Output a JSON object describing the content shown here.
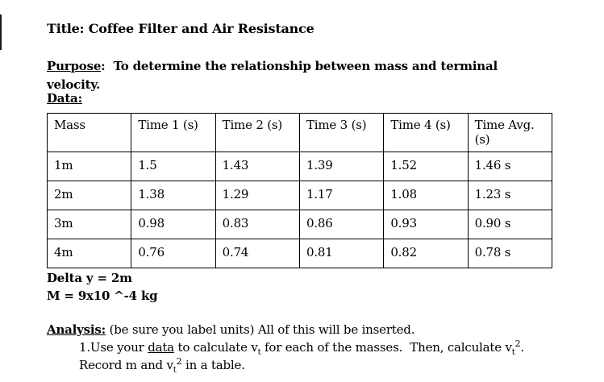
{
  "colors": {
    "text": "#000000",
    "background": "#ffffff",
    "table_border": "#000000"
  },
  "doc": {
    "title": "Title: Coffee Filter and Air Resistance"
  },
  "purpose": {
    "label": "Purpose",
    "separator": ":  ",
    "line1_rest": "To determine the relationship between mass and terminal",
    "line2": "velocity."
  },
  "data_section": {
    "label": "Data:"
  },
  "table": {
    "headers": [
      "Mass",
      "Time 1 (s)",
      "Time 2 (s)",
      "Time 3 (s)",
      "Time 4 (s)",
      "Time Avg. (s)"
    ],
    "rows": [
      [
        "1m",
        "1.5",
        "1.43",
        "1.39",
        "1.52",
        "1.46 s"
      ],
      [
        "2m",
        "1.38",
        "1.29",
        "1.17",
        "1.08",
        "1.23 s"
      ],
      [
        "3m",
        "0.98",
        "0.83",
        "0.86",
        "0.93",
        "0.90 s"
      ],
      [
        "4m",
        "0.76",
        "0.74",
        "0.81",
        "0.82",
        "0.78 s"
      ]
    ]
  },
  "constants": {
    "delta_y": "Delta y = 2m",
    "mass": "M = 9x10 ^-4 kg"
  },
  "analysis": {
    "label": "Analysis:",
    "intro_rest": " (be sure you label units) All of this will be inserted.",
    "item1": {
      "seg1": "1.Use your ",
      "data_word": "data",
      "seg2": " to calculate v",
      "sub1": "t",
      "seg3": " for each of the masses.  Then, calculate v",
      "sub2": "t",
      "sup1": "2",
      "seg4": "."
    },
    "item2": {
      "seg1": "Record m and v",
      "sub1": "t",
      "sup1": "2",
      "seg2": " in a table."
    }
  }
}
